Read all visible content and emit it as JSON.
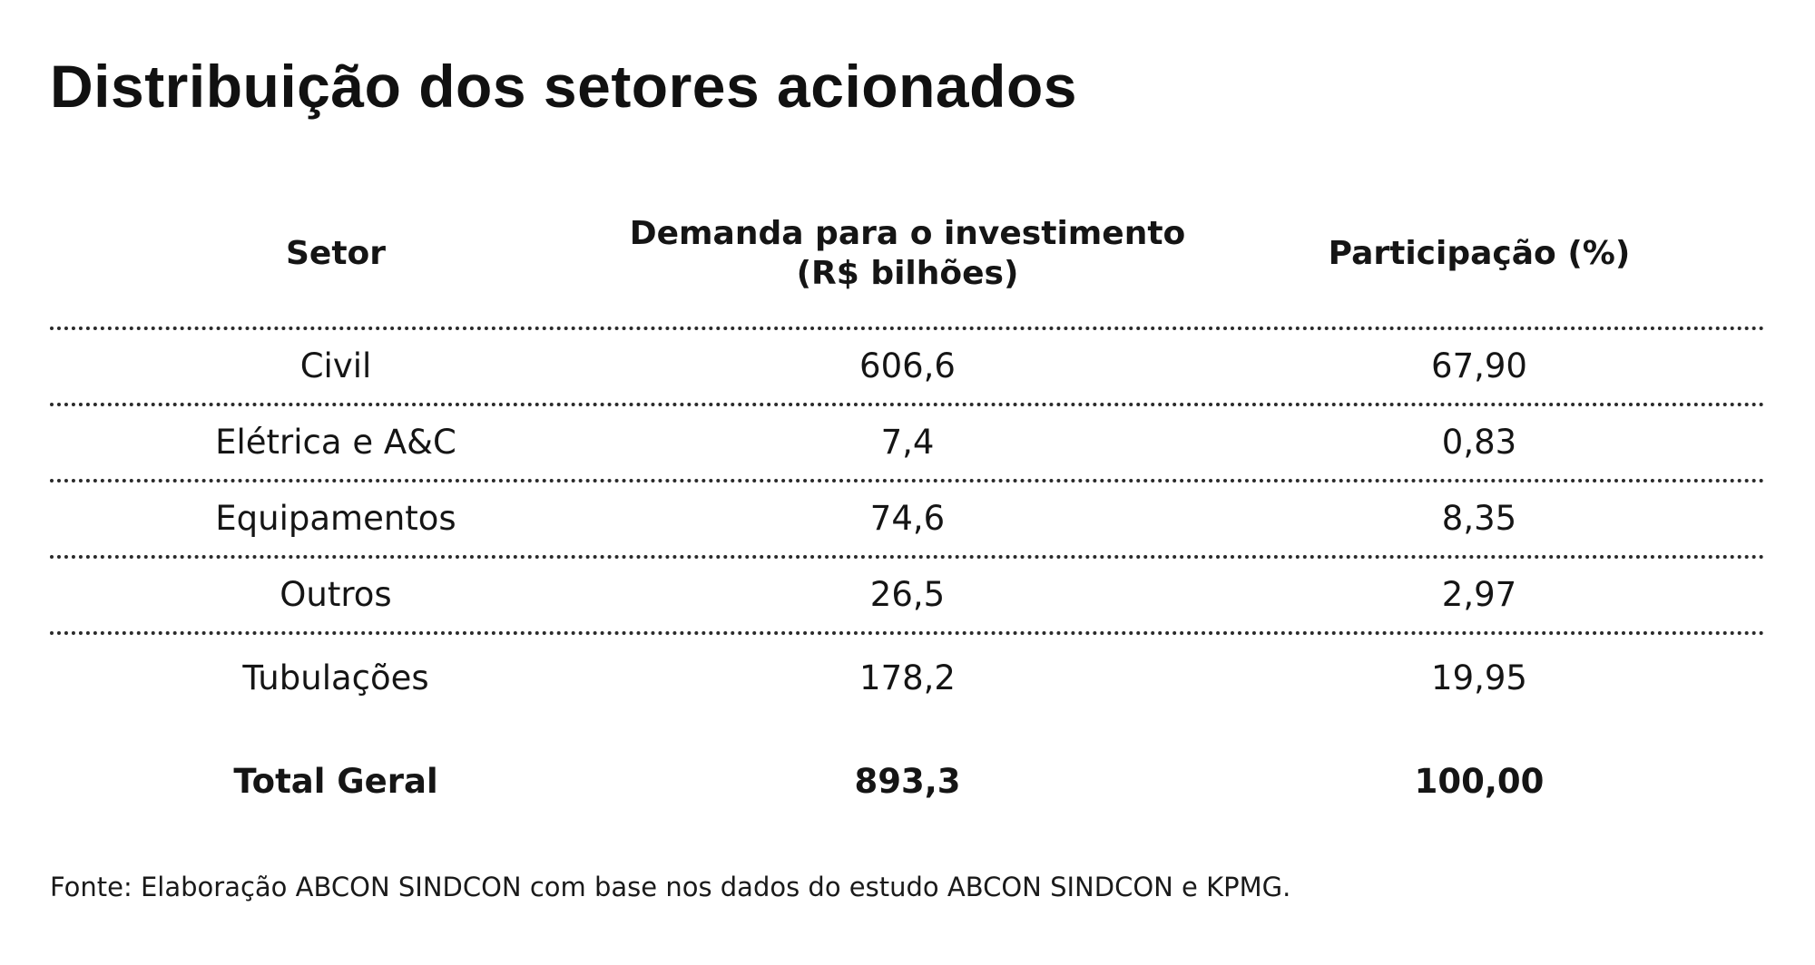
{
  "title": "Distribuição dos setores acionados",
  "table": {
    "headers": {
      "setor": "Setor",
      "demanda_line1": "Demanda para o investimento",
      "demanda_line2": "(R$ bilhões)",
      "participacao": "Participação (%)"
    },
    "rows": [
      {
        "setor": "Civil",
        "demanda": "606,6",
        "participacao": "67,90"
      },
      {
        "setor": "Elétrica e A&C",
        "demanda": "7,4",
        "participacao": "0,83"
      },
      {
        "setor": "Equipamentos",
        "demanda": "74,6",
        "participacao": "8,35"
      },
      {
        "setor": "Outros",
        "demanda": "26,5",
        "participacao": "2,97"
      },
      {
        "setor": "Tubulações",
        "demanda": "178,2",
        "participacao": "19,95"
      }
    ],
    "total": {
      "setor": "Total Geral",
      "demanda": "893,3",
      "participacao": "100,00"
    }
  },
  "source": "Fonte: Elaboração ABCON SINDCON com base nos dados do estudo ABCON SINDCON e KPMG."
}
